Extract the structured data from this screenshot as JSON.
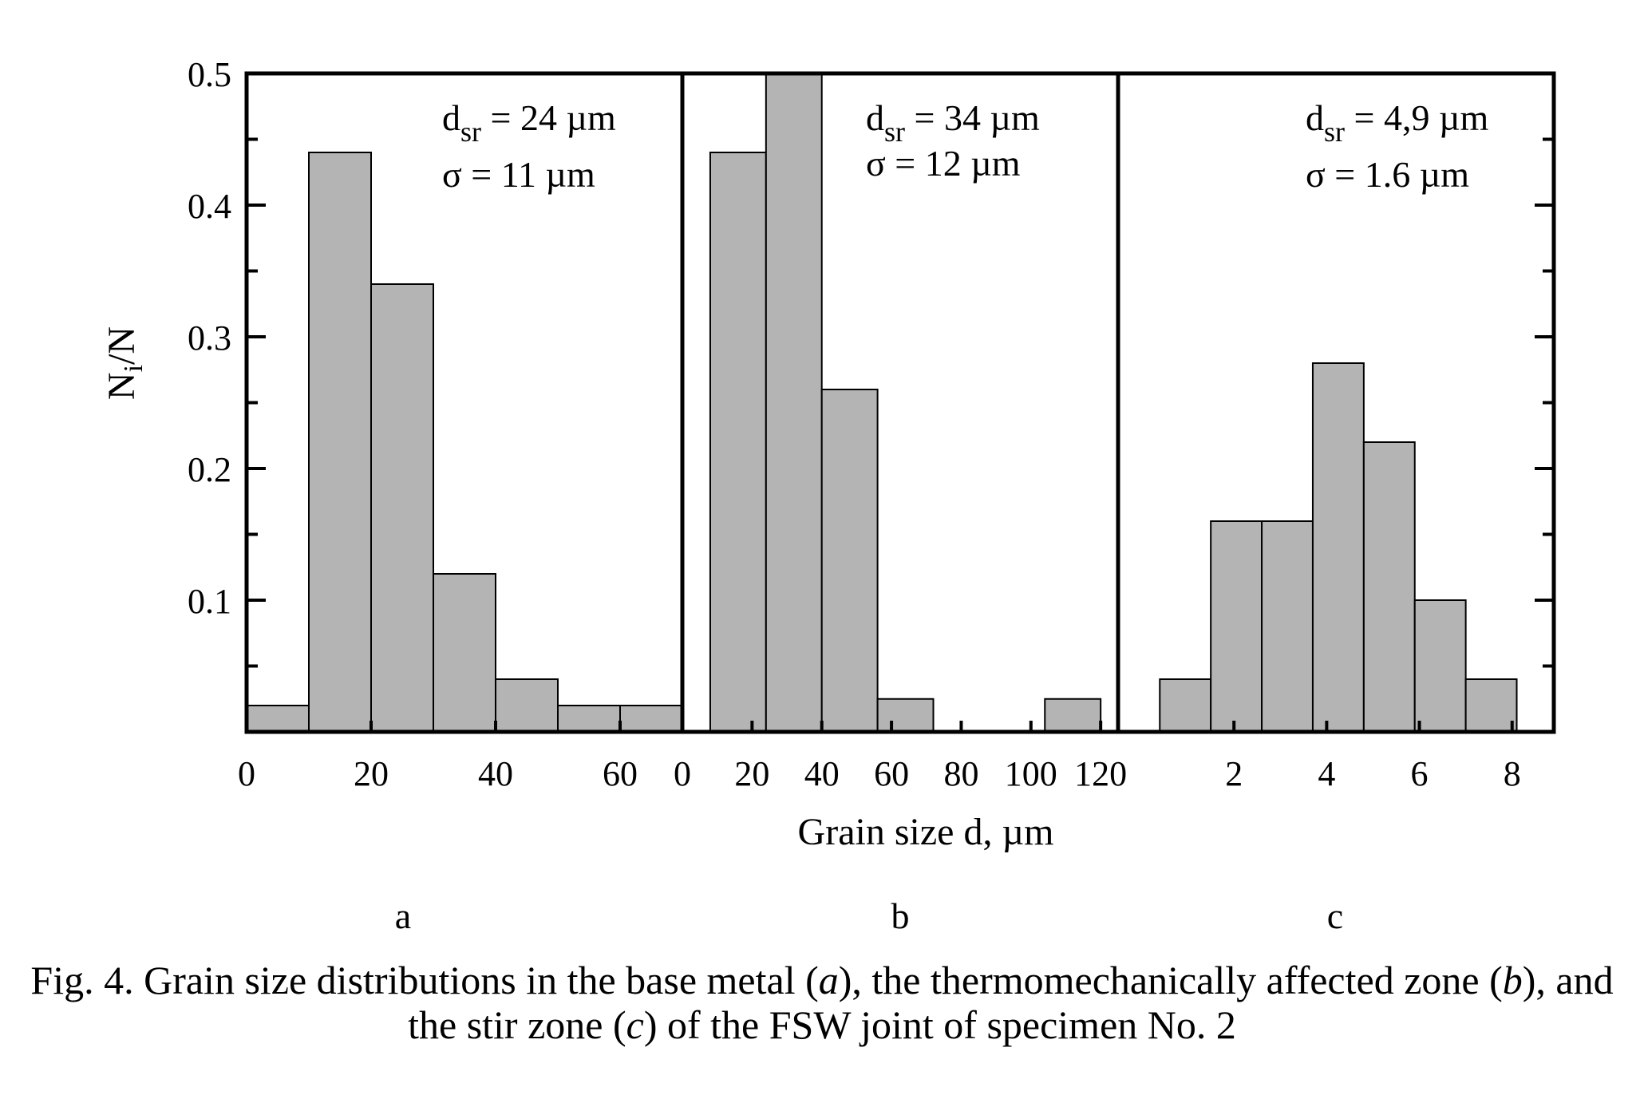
{
  "figure": {
    "ylabel_main": "N",
    "ylabel_sub": "i",
    "ylabel_tail": "/N",
    "xlabel": "Grain size d, µm",
    "y_ticks": [
      "0.1",
      "0.2",
      "0.3",
      "0.4",
      "0.5"
    ],
    "panel_letters": [
      "a",
      "b",
      "c"
    ],
    "caption": {
      "line1_a": "Fig. 4. Grain size distributions in the base metal (",
      "line1_b": "a",
      "line1_c": "), the thermomechanically affected zone (",
      "line1_d": "b",
      "line1_e": "), and",
      "line2_a": "the stir zone (",
      "line2_b": "c",
      "line2_c": ") of the FSW joint of specimen No. 2"
    }
  },
  "chart_data": [
    {
      "type": "bar",
      "panel": "a",
      "xlim": [
        0,
        70
      ],
      "ylim": [
        0,
        0.5
      ],
      "bin_width": 10,
      "bins": [
        0,
        10,
        20,
        30,
        40,
        50,
        60
      ],
      "values": [
        0.02,
        0.44,
        0.34,
        0.12,
        0.04,
        0.02,
        0.02
      ],
      "x_ticks": [
        "0",
        "20",
        "40",
        "60"
      ],
      "annotation": {
        "d_label": "d",
        "d_sub": "sr",
        "d_value": " = 24 µm",
        "sigma": "σ = 11 µm"
      }
    },
    {
      "type": "bar",
      "panel": "b",
      "xlim": [
        0,
        125
      ],
      "ylim": [
        0,
        0.5
      ],
      "bin_width": 16,
      "bins": [
        8,
        24,
        40,
        56,
        104
      ],
      "values": [
        0.44,
        0.52,
        0.26,
        0.025,
        0.025
      ],
      "x_ticks": [
        "0",
        "20",
        "40",
        "60",
        "80",
        "100",
        "120"
      ],
      "annotation": {
        "d_label": "d",
        "d_sub": "sr",
        "d_value": " = 34 µm",
        "sigma": "σ = 12 µm"
      }
    },
    {
      "type": "bar",
      "panel": "c",
      "xlim": [
        -0.5,
        8.9
      ],
      "ylim": [
        0,
        0.5
      ],
      "bin_width": 1.1,
      "bins": [
        0.4,
        1.5,
        2.6,
        3.7,
        4.8,
        5.9,
        7.0,
        8.1
      ],
      "values": [
        0.04,
        0.16,
        0.16,
        0.28,
        0.22,
        0.1,
        0.04,
        0.0
      ],
      "x_ticks": [
        "2",
        "4",
        "6",
        "8"
      ],
      "annotation": {
        "d_label": "d",
        "d_sub": "sr",
        "d_value": " = 4,9 µm",
        "sigma": "σ = 1.6 µm"
      }
    }
  ]
}
